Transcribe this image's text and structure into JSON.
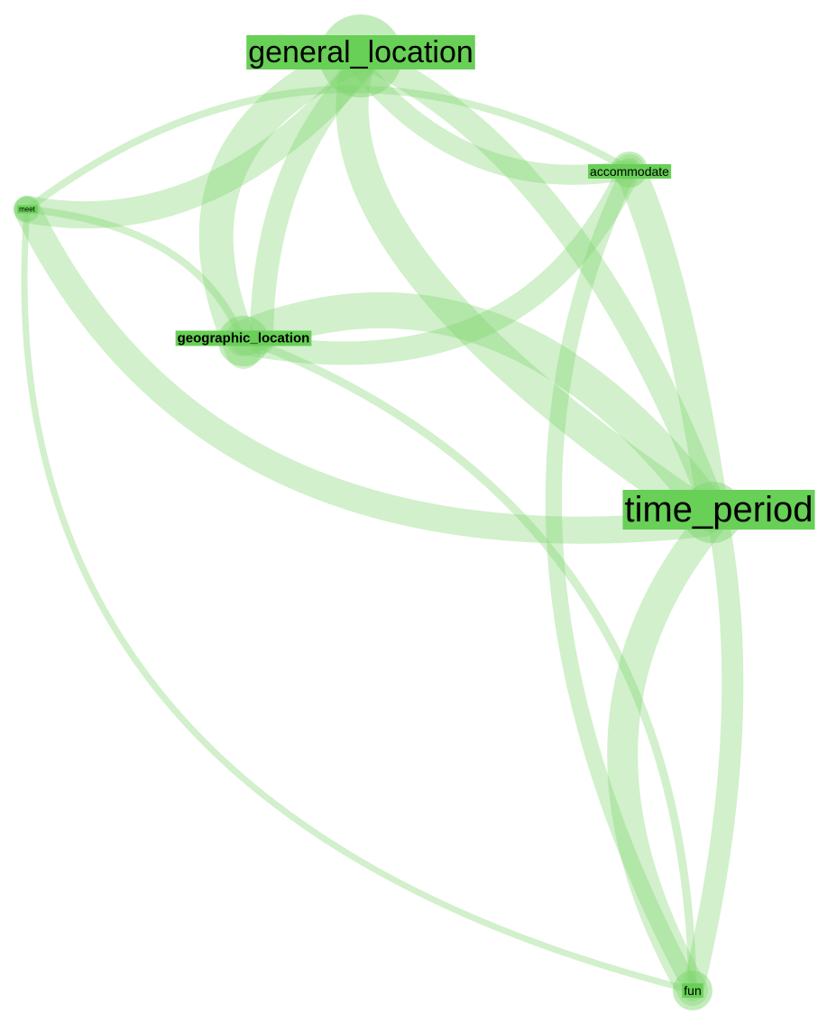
{
  "nodes": [
    {
      "label": "general_location"
    },
    {
      "label": "accommodate"
    },
    {
      "label": "meet"
    },
    {
      "label": "geographic_location"
    },
    {
      "label": "time_period"
    },
    {
      "label": "fun"
    }
  ]
}
